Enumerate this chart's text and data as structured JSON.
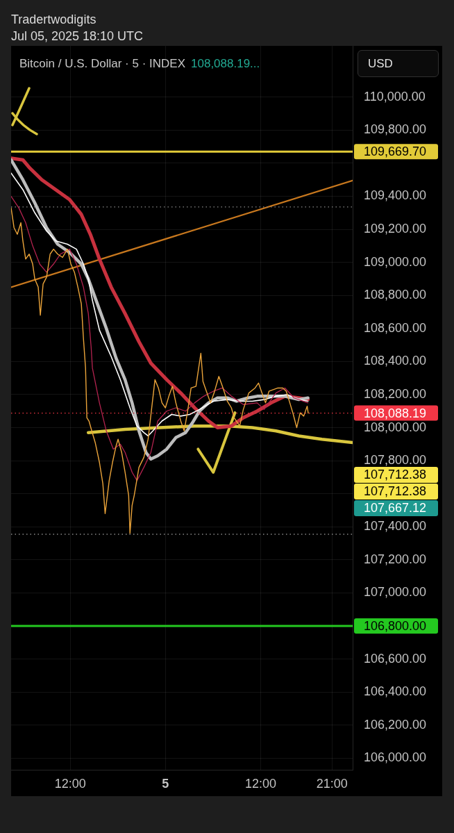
{
  "chart_data": {
    "type": "line",
    "title": "Bitcoin / U.S. Dollar · 5 · INDEX",
    "subtitle": "108,088.19...",
    "ylabel": "USD",
    "annotations": [
      "Tradertwodigits",
      "Jul 05, 2025 18:10 UTC",
      "107,712.38",
      "107,712.38",
      "107,667.12"
    ],
    "xlim": [
      "2025-07-04T04:33",
      "2025-07-05T23:36"
    ],
    "xticks": [
      {
        "value": "2025-07-04T12:00",
        "label": "12:00"
      },
      {
        "value": "2025-07-05",
        "label": "5"
      },
      {
        "value": "2025-07-05T12:00",
        "label": "12:00"
      },
      {
        "value": "2025-07-05T21:00",
        "label": "21:00"
      }
    ],
    "ylim": [
      105930,
      110310
    ],
    "yticks": [
      {
        "value": 106000,
        "label": "106,000.00"
      },
      {
        "value": 106200,
        "label": "106,200.00"
      },
      {
        "value": 106400,
        "label": "106,400.00"
      },
      {
        "value": 106600,
        "label": "106,600.00"
      },
      {
        "value": 106800,
        "label": null
      },
      {
        "value": 107000,
        "label": "107,000.00"
      },
      {
        "value": 107200,
        "label": "107,200.00"
      },
      {
        "value": 107400,
        "label": "107,400.00"
      },
      {
        "value": 107600,
        "label": null
      },
      {
        "value": 107800,
        "label": "107,800.00"
      },
      {
        "value": 108000,
        "label": "108,000.00"
      },
      {
        "value": 108200,
        "label": "108,200.00"
      },
      {
        "value": 108400,
        "label": "108,400.00"
      },
      {
        "value": 108600,
        "label": "108,600.00"
      },
      {
        "value": 108800,
        "label": "108,800.00"
      },
      {
        "value": 109000,
        "label": "109,000.00"
      },
      {
        "value": 109200,
        "label": "109,200.00"
      },
      {
        "value": 109400,
        "label": "109,400.00"
      },
      {
        "value": 109600,
        "label": null
      },
      {
        "value": 109800,
        "label": "109,800.00"
      },
      {
        "value": 110000,
        "label": "110,000.00"
      }
    ],
    "grid": true,
    "ref_lines": [
      {
        "axis": "y",
        "value": 109669.7,
        "label": "109,669.70",
        "color": "#e2cb38"
      },
      {
        "axis": "y",
        "value": 108088.19,
        "label": "108,088.19",
        "color": "#f23645",
        "line_style": "dotted"
      },
      {
        "axis": "y",
        "value": 106800,
        "label": "106,800.00",
        "color": "#24c820"
      },
      {
        "axis": "y",
        "value": 109335,
        "color": "#8a8a8a",
        "line_style": "dotted"
      },
      {
        "axis": "y",
        "value": 107355,
        "color": "#8a8a8a",
        "line_style": "dotted"
      }
    ],
    "series": [
      {
        "color": "#eba43a",
        "x": [
          "2025-07-04T04:33",
          "2025-07-04T04:55",
          "2025-07-04T05:20",
          "2025-07-04T05:47",
          "2025-07-04T06:02",
          "2025-07-04T06:23",
          "2025-07-04T06:50",
          "2025-07-04T07:16",
          "2025-07-04T07:32",
          "2025-07-04T07:58",
          "2025-07-04T08:14",
          "2025-07-04T08:35",
          "2025-07-04T09:01",
          "2025-07-04T09:28",
          "2025-07-04T09:54",
          "2025-07-04T10:25",
          "2025-07-04T11:02",
          "2025-07-04T11:39",
          "2025-07-04T12:05",
          "2025-07-04T12:32",
          "2025-07-04T12:58",
          "2025-07-04T13:24",
          "2025-07-04T13:40",
          "2025-07-04T13:56",
          "2025-07-04T14:06",
          "2025-07-04T14:22",
          "2025-07-04T14:43",
          "2025-07-04T15:09",
          "2025-07-04T15:41",
          "2025-07-04T16:07",
          "2025-07-04T16:24",
          "2025-07-04T16:55",
          "2025-07-04T17:20",
          "2025-07-04T17:47",
          "2025-07-04T18:02",
          "2025-07-04T18:29",
          "2025-07-04T18:55",
          "2025-07-04T19:22",
          "2025-07-04T19:32",
          "2025-07-04T19:48",
          "2025-07-04T20:04",
          "2025-07-04T20:40",
          "2025-07-04T21:17",
          "2025-07-04T21:49",
          "2025-07-04T22:15",
          "2025-07-04T22:41",
          "2025-07-04T23:07",
          "2025-07-04T23:34",
          "2025-07-05T00:00",
          "2025-07-05T00:26",
          "2025-07-05T00:53",
          "2025-07-05T01:19",
          "2025-07-05T01:56",
          "2025-07-05T02:22",
          "2025-07-05T02:48",
          "2025-07-05T03:14",
          "2025-07-05T03:51",
          "2025-07-05T04:28",
          "2025-07-05T04:44",
          "2025-07-05T05:10",
          "2025-07-05T05:41",
          "2025-07-05T06:08",
          "2025-07-05T06:44",
          "2025-07-05T07:11",
          "2025-07-05T07:48",
          "2025-07-05T08:19",
          "2025-07-05T08:40",
          "2025-07-05T09:22",
          "2025-07-05T09:49",
          "2025-07-05T10:31",
          "2025-07-05T11:18",
          "2025-07-05T11:44",
          "2025-07-05T12:10",
          "2025-07-05T12:37",
          "2025-07-05T13:03",
          "2025-07-05T13:35",
          "2025-07-05T14:11",
          "2025-07-05T14:48",
          "2025-07-05T15:14",
          "2025-07-05T15:41",
          "2025-07-05T16:07",
          "2025-07-05T16:33",
          "2025-07-05T16:59",
          "2025-07-05T17:26",
          "2025-07-05T17:52",
          "2025-07-05T18:00"
        ],
        "values": [
          109330,
          109210,
          109170,
          109240,
          109130,
          109020,
          109050,
          108990,
          108900,
          108850,
          108680,
          108870,
          108910,
          109050,
          109080,
          109050,
          109030,
          109080,
          108990,
          108940,
          108850,
          108750,
          108540,
          108360,
          108060,
          108040,
          107980,
          107910,
          107790,
          107660,
          107480,
          107680,
          107790,
          107890,
          107930,
          107850,
          107730,
          107590,
          107360,
          107530,
          107590,
          107760,
          107820,
          107930,
          108110,
          108290,
          108240,
          108150,
          108120,
          108190,
          108250,
          108150,
          108040,
          107980,
          108100,
          108240,
          108250,
          108450,
          108280,
          108220,
          108150,
          108210,
          108310,
          108250,
          108160,
          108120,
          108060,
          108010,
          108110,
          108210,
          108240,
          108270,
          108210,
          108150,
          108220,
          108230,
          108240,
          108240,
          108220,
          108150,
          108080,
          108000,
          108090,
          108070,
          108130,
          108088
        ]
      },
      {
        "color": "#b3234f",
        "x": [
          "2025-07-04T04:33",
          "2025-07-04T05:31",
          "2025-07-04T06:23",
          "2025-07-04T07:16",
          "2025-07-04T08:09",
          "2025-07-04T09:01",
          "2025-07-04T09:54",
          "2025-07-04T10:46",
          "2025-07-04T11:55",
          "2025-07-04T12:47",
          "2025-07-04T13:40",
          "2025-07-04T14:17",
          "2025-07-04T14:38",
          "2025-07-04T14:48",
          "2025-07-04T15:41",
          "2025-07-04T16:33",
          "2025-07-04T17:26",
          "2025-07-04T18:19",
          "2025-07-04T18:55",
          "2025-07-04T19:48",
          "2025-07-04T20:25",
          "2025-07-04T21:17",
          "2025-07-04T22:10",
          "2025-07-04T23:02",
          "2025-07-05T00:10",
          "2025-07-05T01:19",
          "2025-07-05T02:32",
          "2025-07-05T03:41",
          "2025-07-05T04:49",
          "2025-07-05T06:02",
          "2025-07-05T07:11",
          "2025-07-05T08:19",
          "2025-07-05T09:49",
          "2025-07-05T11:34",
          "2025-07-05T12:26",
          "2025-07-05T13:56",
          "2025-07-05T15:04",
          "2025-07-05T16:12",
          "2025-07-05T17:58"
        ],
        "values": [
          109400,
          109330,
          109240,
          109100,
          108990,
          108940,
          108990,
          109050,
          109080,
          108990,
          108850,
          108690,
          108490,
          108360,
          108150,
          107980,
          107870,
          107900,
          107850,
          107730,
          107680,
          107760,
          107850,
          108040,
          108100,
          108120,
          108100,
          108150,
          108190,
          108220,
          108240,
          108190,
          108140,
          108150,
          108110,
          108210,
          108240,
          108180,
          108150
        ]
      },
      {
        "color": "#ffffff",
        "x": [
          "2025-07-04T04:33",
          "2025-07-04T06:02",
          "2025-07-04T07:32",
          "2025-07-04T09:01",
          "2025-07-04T10:10",
          "2025-07-04T11:39",
          "2025-07-04T12:47",
          "2025-07-04T13:40",
          "2025-07-04T14:17",
          "2025-07-04T14:48",
          "2025-07-04T15:41",
          "2025-07-04T17:10",
          "2025-07-04T18:19",
          "2025-07-04T19:32",
          "2025-07-04T20:25",
          "2025-07-04T21:17",
          "2025-07-04T21:49",
          "2025-07-04T22:25",
          "2025-07-04T23:34",
          "2025-07-05T00:47",
          "2025-07-05T01:56",
          "2025-07-05T03:04",
          "2025-07-05T04:17",
          "2025-07-05T06:02",
          "2025-07-05T07:48",
          "2025-07-05T09:33",
          "2025-07-05T10:57",
          "2025-07-05T12:26",
          "2025-07-05T13:56",
          "2025-07-05T15:20",
          "2025-07-05T16:49",
          "2025-07-05T17:58"
        ],
        "values": [
          109540,
          109440,
          109300,
          109190,
          109130,
          109110,
          109080,
          108990,
          108900,
          108770,
          108590,
          108430,
          108290,
          108120,
          108010,
          107970,
          107950,
          107980,
          108040,
          108080,
          108070,
          108080,
          108110,
          108160,
          108170,
          108160,
          108160,
          108170,
          108190,
          108200,
          108170,
          108160
        ]
      },
      {
        "color": "#bdbdbd",
        "x": [
          "2025-07-04T04:33",
          "2025-07-04T06:02",
          "2025-07-04T07:32",
          "2025-07-04T09:01",
          "2025-07-04T10:25",
          "2025-07-04T11:55",
          "2025-07-04T13:24",
          "2025-07-04T14:17",
          "2025-07-04T15:25",
          "2025-07-04T16:33",
          "2025-07-04T17:47",
          "2025-07-04T18:55",
          "2025-07-04T19:48",
          "2025-07-04T20:40",
          "2025-07-04T21:33",
          "2025-07-04T22:10",
          "2025-07-04T23:02",
          "2025-07-05T00:10",
          "2025-07-05T01:19",
          "2025-07-05T02:32",
          "2025-07-05T03:25",
          "2025-07-05T04:17",
          "2025-07-05T05:26",
          "2025-07-05T06:34",
          "2025-07-05T07:48",
          "2025-07-05T08:56",
          "2025-07-05T10:25",
          "2025-07-05T11:34",
          "2025-07-05T13:19",
          "2025-07-05T15:04",
          "2025-07-05T16:49",
          "2025-07-05T17:58"
        ],
        "values": [
          109620,
          109500,
          109360,
          109210,
          109110,
          109060,
          108990,
          108900,
          108750,
          108600,
          108420,
          108290,
          108150,
          107980,
          107850,
          107810,
          107830,
          107870,
          107940,
          107970,
          108030,
          108100,
          108150,
          108180,
          108180,
          108160,
          108180,
          108190,
          108190,
          108190,
          108170,
          108180
        ]
      },
      {
        "color": "#c8313e",
        "x": [
          "2025-07-04T04:33",
          "2025-07-04T06:02",
          "2025-07-04T06:55",
          "2025-07-04T08:25",
          "2025-07-04T10:10",
          "2025-07-04T11:55",
          "2025-07-04T13:24",
          "2025-07-04T14:32",
          "2025-07-04T15:41",
          "2025-07-04T17:10",
          "2025-07-04T18:55",
          "2025-07-04T20:40",
          "2025-07-04T22:10",
          "2025-07-05T00:10",
          "2025-07-05T01:55",
          "2025-07-05T03:41",
          "2025-07-05T05:26",
          "2025-07-05T06:34",
          "2025-07-05T08:19",
          "2025-07-05T09:49",
          "2025-07-05T11:34",
          "2025-07-05T13:19",
          "2025-07-05T15:04",
          "2025-07-05T16:49",
          "2025-07-05T17:58"
        ],
        "values": [
          109630,
          109620,
          109570,
          109500,
          109440,
          109380,
          109290,
          109170,
          109020,
          108850,
          108690,
          108520,
          108390,
          108290,
          108210,
          108120,
          108040,
          108000,
          108010,
          108060,
          108100,
          108150,
          108190,
          108180,
          108170
        ]
      },
      {
        "color": "#c8781e",
        "x": [
          "2025-07-04T04:33",
          "2025-07-05T23:36"
        ],
        "values": [
          108850,
          109495
        ]
      },
      {
        "color": "#d9c63e",
        "x": [
          "2025-07-04T14:17",
          "2025-07-04T18:55",
          "2025-07-04T23:18",
          "2025-07-05T03:41",
          "2025-07-05T08:04",
          "2025-07-05T10:57",
          "2025-07-05T13:56",
          "2025-07-05T16:49",
          "2025-07-05T19:43",
          "2025-07-05T23:36"
        ],
        "values": [
          107970,
          107990,
          108000,
          108010,
          108010,
          108000,
          107980,
          107950,
          107930,
          107910
        ]
      },
      {
        "color": "#d9c63e",
        "x": [
          "2025-07-05T04:07",
          "2025-07-05T06:02",
          "2025-07-05T08:46"
        ],
        "values": [
          107870,
          107730,
          108090
        ]
      }
    ]
  }
}
